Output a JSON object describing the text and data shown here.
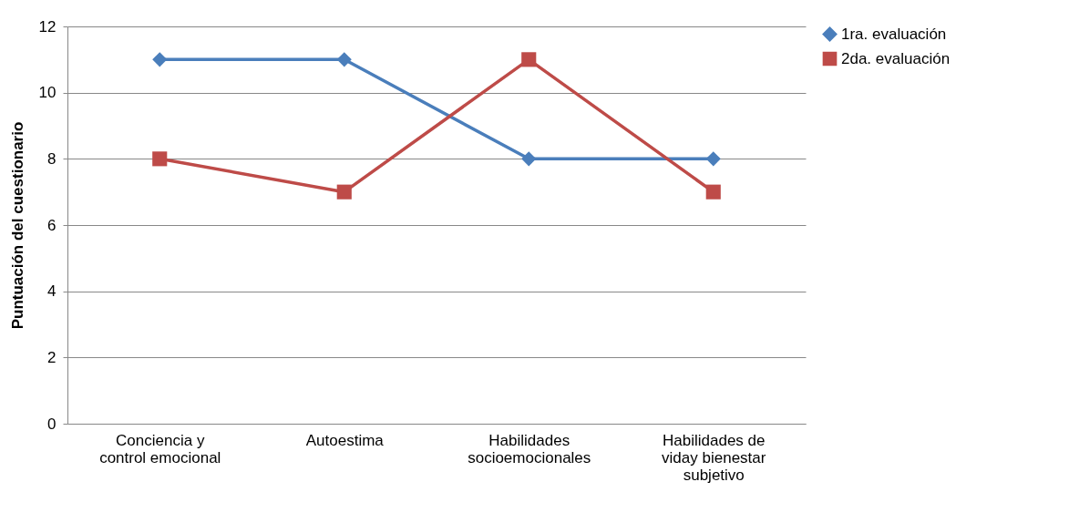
{
  "chart_data": {
    "type": "line",
    "ylabel": "Puntuación del cuestionario",
    "categories": [
      "Conciencia y control emocional",
      "Autoestima",
      "Habilidades socioemocionales",
      "Habilidades de viday bienestar subjetivo"
    ],
    "series": [
      {
        "name": "1ra. evaluación",
        "color": "#4a7ebb",
        "marker": "diamond",
        "values": [
          11,
          11,
          8,
          8
        ]
      },
      {
        "name": "2da. evaluación",
        "color": "#be4b48",
        "marker": "square",
        "values": [
          8,
          7,
          11,
          7
        ]
      }
    ],
    "ylim": [
      0,
      12
    ],
    "yticks": [
      0,
      2,
      4,
      6,
      8,
      10,
      12
    ],
    "grid": "y",
    "legend": "right"
  }
}
